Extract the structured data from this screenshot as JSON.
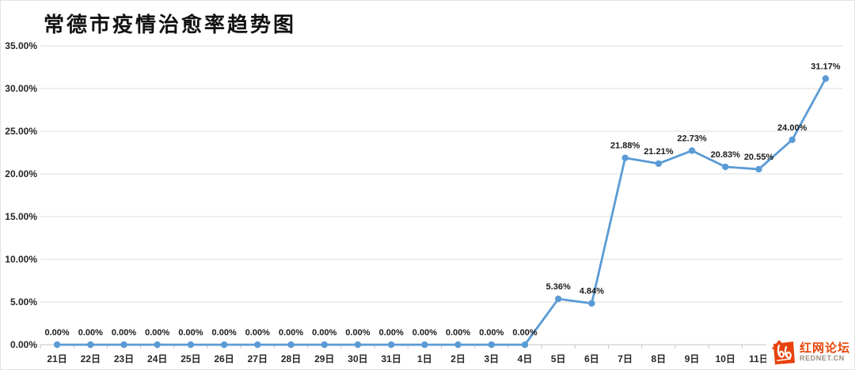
{
  "chart_data": {
    "type": "line",
    "title": "常德市疫情治愈率趋势图",
    "categories": [
      "21日",
      "22日",
      "23日",
      "24日",
      "25日",
      "26日",
      "27日",
      "28日",
      "29日",
      "30日",
      "31日",
      "1日",
      "2日",
      "3日",
      "4日",
      "5日",
      "6日",
      "7日",
      "8日",
      "9日",
      "10日",
      "11日",
      "",
      ""
    ],
    "values": [
      0,
      0,
      0,
      0,
      0,
      0,
      0,
      0,
      0,
      0,
      0,
      0,
      0,
      0,
      0,
      5.36,
      4.84,
      21.88,
      21.21,
      22.73,
      20.83,
      20.55,
      24.0,
      31.17
    ],
    "data_labels": [
      "0.00%",
      "0.00%",
      "0.00%",
      "0.00%",
      "0.00%",
      "0.00%",
      "0.00%",
      "0.00%",
      "0.00%",
      "0.00%",
      "0.00%",
      "0.00%",
      "0.00%",
      "0.00%",
      "0.00%",
      "5.36%",
      "4.84%",
      "21.88%",
      "21.21%",
      "22.73%",
      "20.83%",
      "20.55%",
      "24.00%",
      "31.17%"
    ],
    "y_ticks": [
      "35.00%",
      "30.00%",
      "25.00%",
      "20.00%",
      "15.00%",
      "10.00%",
      "5.00%",
      "0.00%"
    ],
    "ylim": [
      0,
      35
    ],
    "y_step": 5,
    "grid": true,
    "legend_position": "none",
    "line_color": "#5b9bd5",
    "marker": "circle",
    "gridline_color": "#dcdcdc",
    "axis_color": "#c6c6c6"
  },
  "watermark": {
    "site_name": "红网论坛",
    "site_url": "REDNET.CN",
    "brand_color": "#e8430d"
  }
}
